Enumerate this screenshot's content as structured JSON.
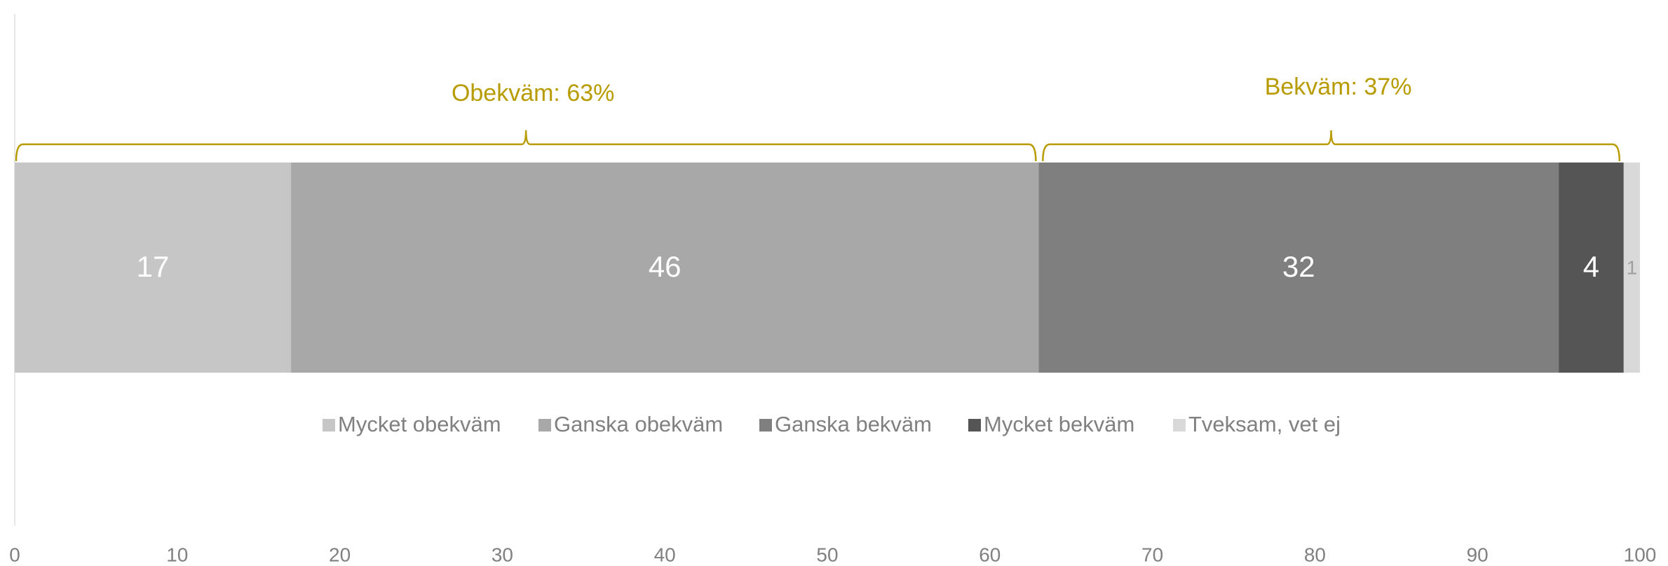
{
  "chart_data": {
    "type": "stacked_bar",
    "orientation": "horizontal",
    "categories": [
      null
    ],
    "series": [
      {
        "name": "Mycket obekväm",
        "color": "#c6c6c6",
        "values": [
          17
        ]
      },
      {
        "name": "Ganska obekväm",
        "color": "#a8a8a8",
        "values": [
          46
        ]
      },
      {
        "name": "Ganska bekväm",
        "color": "#7f7f7f",
        "values": [
          32
        ]
      },
      {
        "name": "Mycket bekväm",
        "color": "#555555",
        "values": [
          4
        ]
      },
      {
        "name": "Tveksam, vet ej",
        "color": "#d9d9d9",
        "values": [
          1
        ]
      }
    ],
    "annotations": [
      "Obekväm: 63%",
      "Bekväm: 37%"
    ],
    "annotation_color": "#b89b00",
    "xlim": [
      0,
      100
    ],
    "xticks": [
      0,
      10,
      20,
      30,
      40,
      50,
      60,
      70,
      80,
      90,
      100
    ],
    "grid": false,
    "legend": "middle"
  }
}
